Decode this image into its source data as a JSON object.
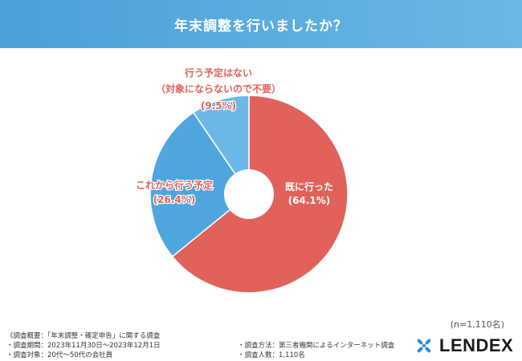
{
  "header": {
    "title": "年末調整を行いましたか？"
  },
  "chart_data": {
    "type": "pie",
    "variant": "donut",
    "title": "年末調整を行いましたか？",
    "slices": [
      {
        "label": "既に行った",
        "value": 64.1,
        "value_text": "(64.1%)",
        "color": "#e0625b"
      },
      {
        "label": "これから行う予定",
        "value": 26.4,
        "value_text": "(26.4%)",
        "color": "#4ea6dc"
      },
      {
        "label_lines": [
          "行う予定はない",
          "（対象にならないので不要）"
        ],
        "value": 9.5,
        "value_text": "(9.5%)",
        "color": "#6cb9e8"
      }
    ],
    "start": "top",
    "direction": "clockwise"
  },
  "sample": {
    "note": "(n=1,110名)"
  },
  "footer": {
    "summary": "《調査概要：「年末調整・確定申告」に関する調査",
    "period": "・調査期間：2023年11月30日〜2023年12月1日",
    "target": "・調査対象：20代〜50代の会社員",
    "method": "・調査方法：第三者機関によるインターネット調査",
    "count": "・調査人数：1,110名"
  },
  "logo": {
    "text": "LENDEX"
  }
}
